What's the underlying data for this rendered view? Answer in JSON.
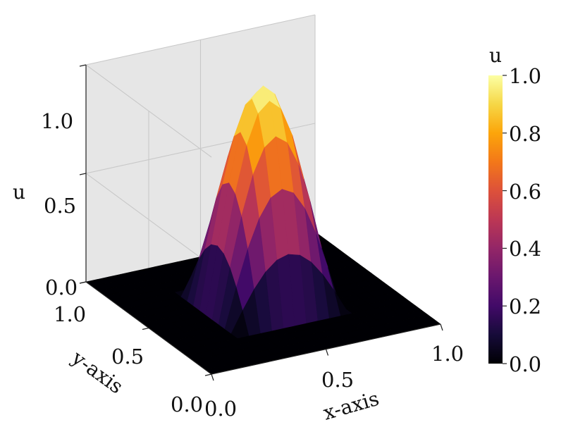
{
  "chart_data": {
    "type": "surface3d",
    "title": "",
    "xlabel": "x-axis",
    "ylabel": "y-axis",
    "zlabel": "u",
    "xlim": [
      0.0,
      1.0
    ],
    "ylim": [
      0.0,
      1.0
    ],
    "zlim": [
      0.0,
      1.0
    ],
    "x_ticks": [
      "0.0",
      "0.5",
      "1.0"
    ],
    "y_ticks": [
      "0.0",
      "0.5",
      "1.0"
    ],
    "z_ticks": [
      "0.0",
      "0.5",
      "1.0"
    ],
    "colormap": "inferno",
    "colorbar": {
      "label": "u",
      "ticks": [
        "0.0",
        "0.2",
        "0.4",
        "0.6",
        "0.8",
        "1.0"
      ],
      "range": [
        0.0,
        1.0
      ]
    },
    "surface": {
      "x": [
        0.0,
        0.05,
        0.1,
        0.15,
        0.2,
        0.25,
        0.3,
        0.35,
        0.4,
        0.45,
        0.5,
        0.55,
        0.6,
        0.65,
        0.7,
        0.75,
        0.8,
        0.85,
        0.9,
        0.95,
        1.0
      ],
      "y": [
        0.0,
        0.05,
        0.1,
        0.15,
        0.2,
        0.25,
        0.3,
        0.35,
        0.4,
        0.45,
        0.5,
        0.55,
        0.6,
        0.65,
        0.7,
        0.75,
        0.8,
        0.85,
        0.9,
        0.95,
        1.0
      ],
      "support_x": [
        0.25,
        0.75
      ],
      "support_y": [
        0.25,
        0.75
      ],
      "peak_u": 1.0,
      "outside_u": 0.0
    },
    "grid": true,
    "legend": "colorbar-right"
  }
}
